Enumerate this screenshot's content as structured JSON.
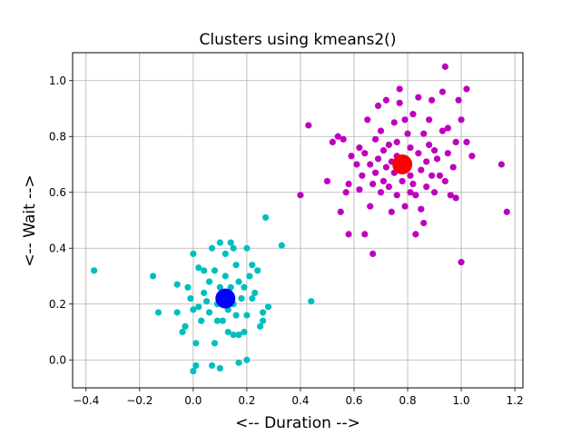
{
  "chart_data": {
    "type": "scatter",
    "title": "Clusters using kmeans2()",
    "xlabel": "<-- Duration -->",
    "ylabel": "<-- Wait -->",
    "xlim": [
      -0.45,
      1.23
    ],
    "ylim": [
      -0.1,
      1.1
    ],
    "x_ticks": [
      -0.4,
      -0.2,
      0.0,
      0.2,
      0.4,
      0.6,
      0.8,
      1.0,
      1.2
    ],
    "x_tick_labels": [
      "−0.4",
      "−0.2",
      "0.0",
      "0.2",
      "0.4",
      "0.6",
      "0.8",
      "1.0",
      "1.2"
    ],
    "y_ticks": [
      0.0,
      0.2,
      0.4,
      0.6,
      0.8,
      1.0
    ],
    "y_tick_labels": [
      "0.0",
      "0.2",
      "0.4",
      "0.6",
      "0.8",
      "1.0"
    ],
    "grid": true,
    "colors": {
      "cluster_1": "#00bfbf",
      "cluster_2": "#bf00bf",
      "centroid_1": "#0000ff",
      "centroid_2": "#ff0000",
      "grid": "#b0b0b0"
    },
    "series": [
      {
        "points": [
          [
            -0.37,
            0.32
          ],
          [
            -0.15,
            0.3
          ],
          [
            -0.13,
            0.17
          ],
          [
            -0.06,
            0.17
          ],
          [
            -0.06,
            0.27
          ],
          [
            -0.04,
            0.1
          ],
          [
            -0.03,
            0.12
          ],
          [
            -0.02,
            0.26
          ],
          [
            -0.01,
            0.22
          ],
          [
            0.0,
            0.38
          ],
          [
            0.0,
            -0.04
          ],
          [
            0.01,
            -0.02
          ],
          [
            0.0,
            0.18
          ],
          [
            0.01,
            0.06
          ],
          [
            0.02,
            0.33
          ],
          [
            0.02,
            0.19
          ],
          [
            0.03,
            0.14
          ],
          [
            0.04,
            0.32
          ],
          [
            0.04,
            0.24
          ],
          [
            0.05,
            0.21
          ],
          [
            0.06,
            0.28
          ],
          [
            0.06,
            0.17
          ],
          [
            0.07,
            0.4
          ],
          [
            0.07,
            -0.02
          ],
          [
            0.08,
            0.06
          ],
          [
            0.08,
            0.32
          ],
          [
            0.09,
            0.14
          ],
          [
            0.09,
            0.2
          ],
          [
            0.1,
            0.42
          ],
          [
            0.1,
            0.26
          ],
          [
            0.1,
            -0.03
          ],
          [
            0.11,
            0.22
          ],
          [
            0.11,
            0.14
          ],
          [
            0.12,
            0.3
          ],
          [
            0.12,
            0.38
          ],
          [
            0.13,
            0.18
          ],
          [
            0.13,
            0.1
          ],
          [
            0.14,
            0.26
          ],
          [
            0.14,
            0.42
          ],
          [
            0.15,
            0.4
          ],
          [
            0.15,
            0.2
          ],
          [
            0.15,
            0.09
          ],
          [
            0.16,
            0.34
          ],
          [
            0.16,
            0.16
          ],
          [
            0.17,
            0.09
          ],
          [
            0.17,
            0.28
          ],
          [
            0.17,
            -0.01
          ],
          [
            0.18,
            0.22
          ],
          [
            0.19,
            0.1
          ],
          [
            0.19,
            0.26
          ],
          [
            0.2,
            0.16
          ],
          [
            0.2,
            0.4
          ],
          [
            0.2,
            0.0
          ],
          [
            0.21,
            0.3
          ],
          [
            0.22,
            0.22
          ],
          [
            0.22,
            0.34
          ],
          [
            0.23,
            0.24
          ],
          [
            0.24,
            0.32
          ],
          [
            0.25,
            0.12
          ],
          [
            0.26,
            0.14
          ],
          [
            0.26,
            0.17
          ],
          [
            0.27,
            0.51
          ],
          [
            0.28,
            0.19
          ],
          [
            0.33,
            0.41
          ],
          [
            0.44,
            0.21
          ]
        ]
      },
      {
        "points": [
          [
            0.4,
            0.59
          ],
          [
            0.43,
            0.84
          ],
          [
            0.5,
            0.64
          ],
          [
            0.52,
            0.78
          ],
          [
            0.54,
            0.8
          ],
          [
            0.55,
            0.53
          ],
          [
            0.56,
            0.79
          ],
          [
            0.57,
            0.6
          ],
          [
            0.58,
            0.45
          ],
          [
            0.59,
            0.73
          ],
          [
            0.61,
            0.7
          ],
          [
            0.62,
            0.61
          ],
          [
            0.63,
            0.66
          ],
          [
            0.64,
            0.74
          ],
          [
            0.64,
            0.45
          ],
          [
            0.65,
            0.86
          ],
          [
            0.66,
            0.7
          ],
          [
            0.66,
            0.55
          ],
          [
            0.67,
            0.63
          ],
          [
            0.67,
            0.38
          ],
          [
            0.68,
            0.67
          ],
          [
            0.68,
            0.79
          ],
          [
            0.69,
            0.91
          ],
          [
            0.69,
            0.72
          ],
          [
            0.7,
            0.6
          ],
          [
            0.7,
            0.82
          ],
          [
            0.71,
            0.75
          ],
          [
            0.71,
            0.64
          ],
          [
            0.72,
            0.69
          ],
          [
            0.72,
            0.93
          ],
          [
            0.73,
            0.62
          ],
          [
            0.73,
            0.77
          ],
          [
            0.74,
            0.71
          ],
          [
            0.74,
            0.53
          ],
          [
            0.75,
            0.85
          ],
          [
            0.75,
            0.67
          ],
          [
            0.76,
            0.78
          ],
          [
            0.76,
            0.59
          ],
          [
            0.77,
            0.92
          ],
          [
            0.77,
            0.97
          ],
          [
            0.78,
            0.72
          ],
          [
            0.78,
            0.64
          ],
          [
            0.79,
            0.86
          ],
          [
            0.79,
            0.55
          ],
          [
            0.8,
            0.7
          ],
          [
            0.8,
            0.81
          ],
          [
            0.81,
            0.66
          ],
          [
            0.81,
            0.76
          ],
          [
            0.82,
            0.63
          ],
          [
            0.82,
            0.88
          ],
          [
            0.83,
            0.59
          ],
          [
            0.83,
            0.45
          ],
          [
            0.84,
            0.74
          ],
          [
            0.84,
            0.94
          ],
          [
            0.85,
            0.68
          ],
          [
            0.85,
            0.54
          ],
          [
            0.86,
            0.49
          ],
          [
            0.86,
            0.81
          ],
          [
            0.87,
            0.62
          ],
          [
            0.87,
            0.71
          ],
          [
            0.88,
            0.86
          ],
          [
            0.88,
            0.77
          ],
          [
            0.89,
            0.66
          ],
          [
            0.89,
            0.93
          ],
          [
            0.9,
            0.6
          ],
          [
            0.91,
            0.72
          ],
          [
            0.92,
            0.66
          ],
          [
            0.93,
            0.96
          ],
          [
            0.93,
            0.82
          ],
          [
            0.94,
            1.05
          ],
          [
            0.94,
            0.64
          ],
          [
            0.95,
            0.74
          ],
          [
            0.96,
            0.59
          ],
          [
            0.97,
            0.69
          ],
          [
            0.98,
            0.58
          ],
          [
            0.98,
            0.78
          ],
          [
            0.99,
            0.93
          ],
          [
            1.0,
            0.35
          ],
          [
            1.0,
            0.86
          ],
          [
            1.02,
            0.78
          ],
          [
            1.02,
            0.97
          ],
          [
            1.04,
            0.73
          ],
          [
            1.15,
            0.7
          ],
          [
            1.17,
            0.53
          ],
          [
            0.58,
            0.63
          ],
          [
            0.62,
            0.76
          ],
          [
            0.76,
            0.73
          ],
          [
            0.81,
            0.6
          ],
          [
            0.9,
            0.75
          ],
          [
            0.95,
            0.83
          ]
        ]
      }
    ],
    "centroids": [
      [
        0.12,
        0.22
      ],
      [
        0.78,
        0.7
      ]
    ]
  }
}
